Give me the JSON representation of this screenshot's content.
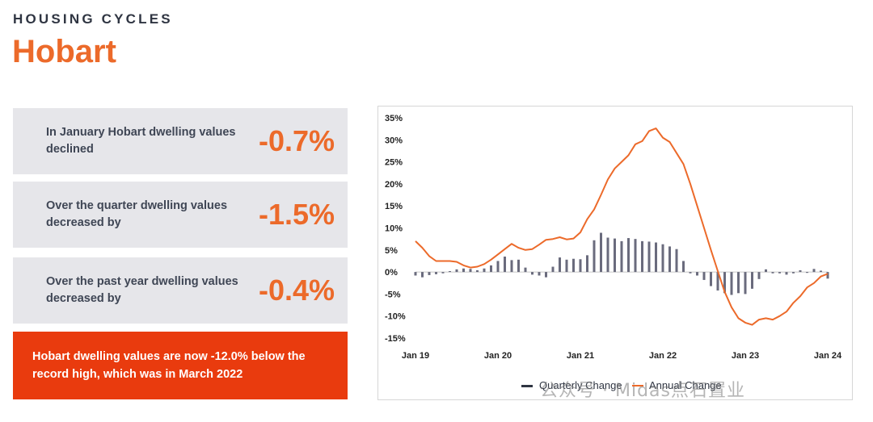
{
  "header": {
    "kicker": "HOUSING CYCLES",
    "city": "Hobart"
  },
  "stats": [
    {
      "text": "In January Hobart dwelling values declined",
      "value": "-0.7%"
    },
    {
      "text": "Over the quarter dwelling values decreased by",
      "value": "-1.5%"
    },
    {
      "text": "Over the past year dwelling values decreased by",
      "value": "-0.4%"
    }
  ],
  "callout": "Hobart dwelling values are now -12.0% below the record high, which was in March 2022",
  "watermark": "公众号 · Midas点石置业",
  "colors": {
    "accent": "#ec6a2a",
    "callout_bg": "#e93b0e",
    "bar": "#6a6b7d",
    "panel": "#e6e6ea"
  },
  "chart_data": {
    "type": "bar+line",
    "ylim": [
      -15,
      35
    ],
    "yticks": [
      "35%",
      "30%",
      "25%",
      "20%",
      "15%",
      "10%",
      "5%",
      "0%",
      "-5%",
      "-10%",
      "-15%"
    ],
    "ytick_values": [
      35,
      30,
      25,
      20,
      15,
      10,
      5,
      0,
      -5,
      -10,
      -15
    ],
    "xticks": [
      "Jan 19",
      "Jan 20",
      "Jan 21",
      "Jan 22",
      "Jan 23",
      "Jan 24"
    ],
    "legend": [
      {
        "name": "Quarterly Change",
        "color": "#2f3542",
        "kind": "bar"
      },
      {
        "name": "Annual Change",
        "color": "#ec6a2a",
        "kind": "line"
      }
    ],
    "legend_position": "bottom",
    "months": [
      "2019-01",
      "2019-02",
      "2019-03",
      "2019-04",
      "2019-05",
      "2019-06",
      "2019-07",
      "2019-08",
      "2019-09",
      "2019-10",
      "2019-11",
      "2019-12",
      "2020-01",
      "2020-02",
      "2020-03",
      "2020-04",
      "2020-05",
      "2020-06",
      "2020-07",
      "2020-08",
      "2020-09",
      "2020-10",
      "2020-11",
      "2020-12",
      "2021-01",
      "2021-02",
      "2021-03",
      "2021-04",
      "2021-05",
      "2021-06",
      "2021-07",
      "2021-08",
      "2021-09",
      "2021-10",
      "2021-11",
      "2021-12",
      "2022-01",
      "2022-02",
      "2022-03",
      "2022-04",
      "2022-05",
      "2022-06",
      "2022-07",
      "2022-08",
      "2022-09",
      "2022-10",
      "2022-11",
      "2022-12",
      "2023-01",
      "2023-02",
      "2023-03",
      "2023-04",
      "2023-05",
      "2023-06",
      "2023-07",
      "2023-08",
      "2023-09",
      "2023-10",
      "2023-11",
      "2023-12",
      "2024-01"
    ],
    "series": [
      {
        "name": "Quarterly Change",
        "values": [
          -0.8,
          -1.2,
          -0.7,
          -0.5,
          -0.3,
          0.2,
          0.6,
          0.8,
          0.7,
          0.4,
          0.8,
          1.5,
          2.5,
          3.5,
          2.7,
          2.8,
          1.0,
          -0.6,
          -0.8,
          -1.2,
          1.2,
          3.3,
          2.8,
          3.0,
          2.9,
          3.8,
          7.2,
          8.9,
          7.8,
          7.6,
          7.0,
          7.7,
          7.5,
          7.0,
          6.9,
          6.7,
          6.3,
          5.8,
          5.2,
          2.5,
          -0.3,
          -0.8,
          -1.8,
          -3.2,
          -4.2,
          -4.8,
          -5.2,
          -4.8,
          -5.0,
          -3.8,
          -1.6,
          0.6,
          -0.3,
          -0.3,
          -0.6,
          -0.3,
          0.4,
          -0.2,
          0.7,
          0.3,
          -1.5
        ]
      },
      {
        "name": "Annual Change",
        "values": [
          7.0,
          5.5,
          3.6,
          2.5,
          2.5,
          2.5,
          2.3,
          1.5,
          1.0,
          1.2,
          1.8,
          2.8,
          4.0,
          5.2,
          6.4,
          5.5,
          5.0,
          5.2,
          6.2,
          7.3,
          7.5,
          7.9,
          7.4,
          7.6,
          9.0,
          12.0,
          14.2,
          17.5,
          21.0,
          23.5,
          25.0,
          26.5,
          29.0,
          29.7,
          32.0,
          32.6,
          30.5,
          29.5,
          27.0,
          24.5,
          20.0,
          15.0,
          10.0,
          5.0,
          0.2,
          -4.5,
          -8.0,
          -10.5,
          -11.5,
          -12.0,
          -10.8,
          -10.5,
          -10.8,
          -10.0,
          -9.0,
          -7.0,
          -5.5,
          -3.5,
          -2.5,
          -1.0,
          -0.4
        ]
      }
    ]
  }
}
